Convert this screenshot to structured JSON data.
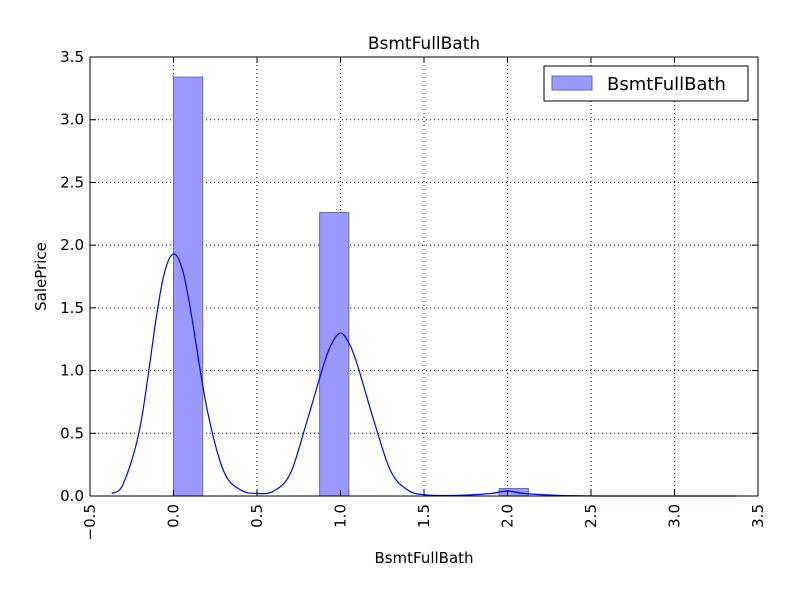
{
  "chart_data": {
    "type": "bar",
    "title": "BsmtFullBath",
    "xlabel": "BsmtFullBath",
    "ylabel": "SalePrice",
    "xlim": [
      -0.5,
      3.5
    ],
    "ylim": [
      0,
      3.5
    ],
    "grid": true,
    "legend_placement": "top-right",
    "x_ticks": [
      "−0.5",
      "0.0",
      "0.5",
      "1.0",
      "1.5",
      "2.0",
      "2.5",
      "3.0",
      "3.5"
    ],
    "x_tick_values": [
      -0.5,
      0.0,
      0.5,
      1.0,
      1.5,
      2.0,
      2.5,
      3.0,
      3.5
    ],
    "y_ticks": [
      "0.0",
      "0.5",
      "1.0",
      "1.5",
      "2.0",
      "2.5",
      "3.0",
      "3.5"
    ],
    "y_tick_values": [
      0.0,
      0.5,
      1.0,
      1.5,
      2.0,
      2.5,
      3.0,
      3.5
    ],
    "bars": [
      {
        "x0": 0.0,
        "x1": 0.175,
        "value": 3.34
      },
      {
        "x0": 0.875,
        "x1": 1.05,
        "value": 2.26
      },
      {
        "x0": 1.95,
        "x1": 2.125,
        "value": 0.06
      }
    ],
    "series": [
      {
        "name": "BsmtFullBath",
        "kind": "histogram",
        "color": "#9999ff",
        "edge_color": "#6a6aa8"
      },
      {
        "kind": "kde",
        "color": "#0000ff",
        "x": [
          -0.37,
          -0.3,
          -0.2,
          -0.1,
          -0.05,
          0.0,
          0.05,
          0.1,
          0.2,
          0.3,
          0.4,
          0.5,
          0.6,
          0.7,
          0.8,
          0.9,
          0.95,
          1.0,
          1.05,
          1.1,
          1.2,
          1.3,
          1.4,
          1.5,
          1.7,
          1.9,
          2.0,
          2.1,
          2.3,
          2.6,
          3.0,
          3.37
        ],
        "y": [
          0.02,
          0.1,
          0.55,
          1.45,
          1.8,
          1.93,
          1.82,
          1.5,
          0.7,
          0.2,
          0.05,
          0.02,
          0.04,
          0.18,
          0.6,
          1.05,
          1.22,
          1.3,
          1.22,
          1.05,
          0.6,
          0.2,
          0.05,
          0.01,
          0.005,
          0.02,
          0.04,
          0.02,
          0.005,
          0.0,
          0.0,
          0.0
        ]
      }
    ]
  }
}
